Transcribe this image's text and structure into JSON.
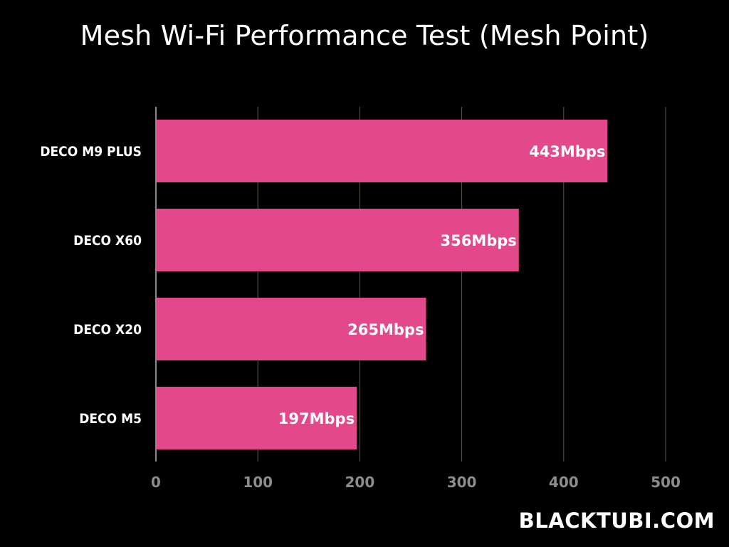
{
  "title": "Mesh Wi-Fi Performance Test (Mesh Point)",
  "watermark": "BLACKTUBI.COM",
  "colors": {
    "background": "#000000",
    "bar": "#e2488a",
    "grid": "#5a5a5a",
    "axis": "#8a8a8a",
    "category_text": "#ffffff",
    "value_text": "#ffffff",
    "tick_text": "#8c8c8c"
  },
  "chart_data": {
    "type": "bar",
    "orientation": "horizontal",
    "categories": [
      "DECO M9 PLUS",
      "DECO X60",
      "DECO X20",
      "DECO M5"
    ],
    "values": [
      443,
      356,
      265,
      197
    ],
    "value_labels": [
      "443Mbps",
      "356Mbps",
      "265Mbps",
      "197Mbps"
    ],
    "unit": "Mbps",
    "xlim": [
      0,
      500
    ],
    "xticks": [
      0,
      100,
      200,
      300,
      400,
      500
    ],
    "xtick_labels": [
      "0",
      "100",
      "200",
      "300",
      "400",
      "500"
    ],
    "grid": true,
    "legend": "none"
  }
}
